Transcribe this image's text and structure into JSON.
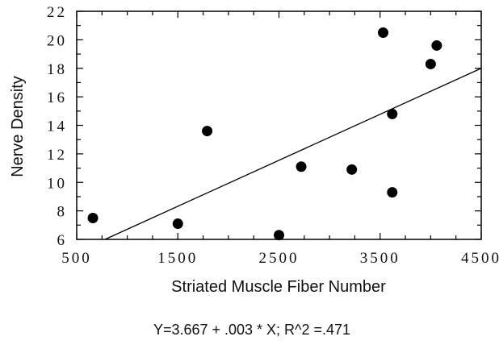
{
  "chart_data": {
    "type": "scatter",
    "xlabel": "Striated Muscle Fiber Number",
    "ylabel": "Nerve Density",
    "xlim": [
      500,
      4500
    ],
    "ylim": [
      6,
      22
    ],
    "x_ticks": [
      500,
      1500,
      2500,
      3500,
      4500
    ],
    "y_ticks": [
      6,
      8,
      10,
      12,
      14,
      16,
      18,
      20,
      22
    ],
    "x_tick_labels": [
      "500",
      "1500",
      "2500",
      "3500",
      "4500"
    ],
    "y_tick_labels": [
      "6",
      "8",
      "10",
      "12",
      "14",
      "16",
      "18",
      "20",
      "22"
    ],
    "grid": false,
    "series": [
      {
        "points": [
          {
            "x": 660,
            "y": 7.5
          },
          {
            "x": 1500,
            "y": 7.1
          },
          {
            "x": 1790,
            "y": 13.6
          },
          {
            "x": 2500,
            "y": 6.3
          },
          {
            "x": 2720,
            "y": 11.1
          },
          {
            "x": 3220,
            "y": 10.9
          },
          {
            "x": 3530,
            "y": 20.5
          },
          {
            "x": 3620,
            "y": 9.3
          },
          {
            "x": 3620,
            "y": 14.8
          },
          {
            "x": 4000,
            "y": 18.3
          },
          {
            "x": 4060,
            "y": 19.6
          }
        ],
        "color": "#000000"
      }
    ],
    "regression_line": {
      "x": [
        780,
        4500
      ],
      "y": [
        6.0,
        18.0
      ],
      "color": "#000000"
    },
    "annotation": "Y=3.667 + .003 * X; R^2 =.471"
  }
}
